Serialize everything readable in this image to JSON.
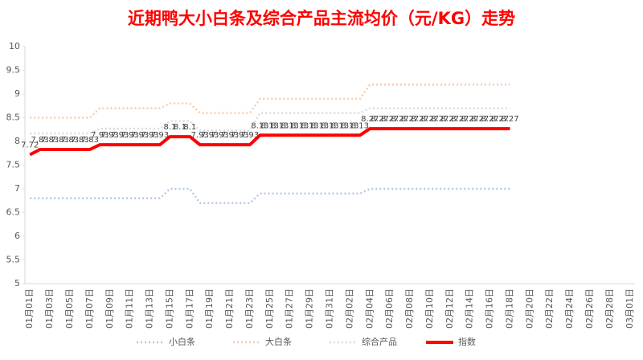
{
  "chart_data": {
    "type": "line",
    "title": "近期鸭大小白条及综合产品主流均价（元/KG）走势",
    "categories": [
      "01月01日",
      null,
      "01月03日",
      null,
      "01月05日",
      null,
      "01月07日",
      null,
      "01月09日",
      null,
      "01月11日",
      null,
      "01月13日",
      null,
      "01月15日",
      null,
      "01月17日",
      null,
      "01月19日",
      null,
      "01月21日",
      null,
      "01月23日",
      null,
      "01月25日",
      null,
      "01月27日",
      null,
      "01月29日",
      null,
      "01月31日",
      null,
      "02月02日",
      null,
      "02月04日",
      null,
      "02月06日",
      null,
      "02月08日",
      null,
      "02月10日",
      null,
      "02月12日",
      null,
      "02月14日",
      null,
      "02月16日",
      null,
      "02月18日",
      null,
      "02月20日",
      null,
      "02月22日",
      null,
      "02月24日",
      null,
      "02月26日",
      null,
      "02月28日",
      null,
      "03月01日"
    ],
    "series": [
      {
        "name": "小白条",
        "color": "#b4c7e7",
        "values": [
          6.8,
          6.8,
          6.8,
          6.8,
          6.8,
          6.8,
          6.8,
          6.8,
          6.8,
          6.8,
          6.8,
          6.8,
          6.8,
          6.8,
          7.0,
          7.0,
          7.0,
          6.7,
          6.7,
          6.7,
          6.7,
          6.7,
          6.7,
          6.9,
          6.9,
          6.9,
          6.9,
          6.9,
          6.9,
          6.9,
          6.9,
          6.9,
          6.9,
          6.9,
          7.0,
          7.0,
          7.0,
          7.0,
          7.0,
          7.0,
          7.0,
          7.0,
          7.0,
          7.0,
          7.0,
          7.0,
          7.0,
          7.0,
          7.0,
          null,
          null,
          null,
          null,
          null,
          null,
          null,
          null,
          null,
          null,
          null,
          null
        ]
      },
      {
        "name": "大白条",
        "color": "#f8cbad",
        "values": [
          8.5,
          8.5,
          8.5,
          8.5,
          8.5,
          8.5,
          8.5,
          8.7,
          8.7,
          8.7,
          8.7,
          8.7,
          8.7,
          8.7,
          8.8,
          8.8,
          8.8,
          8.6,
          8.6,
          8.6,
          8.6,
          8.6,
          8.6,
          8.9,
          8.9,
          8.9,
          8.9,
          8.9,
          8.9,
          8.9,
          8.9,
          8.9,
          8.9,
          8.9,
          9.2,
          9.2,
          9.2,
          9.2,
          9.2,
          9.2,
          9.2,
          9.2,
          9.2,
          9.2,
          9.2,
          9.2,
          9.2,
          9.2,
          9.2,
          null,
          null,
          null,
          null,
          null,
          null,
          null,
          null,
          null,
          null,
          null,
          null
        ]
      },
      {
        "name": "综合产品",
        "color": "#d6dce5",
        "values": [
          8.17,
          8.17,
          8.17,
          8.17,
          8.17,
          8.17,
          8.17,
          8.27,
          8.27,
          8.27,
          8.27,
          8.27,
          8.27,
          8.27,
          8.43,
          8.43,
          8.43,
          8.23,
          8.23,
          8.23,
          8.23,
          8.23,
          8.23,
          8.6,
          8.6,
          8.6,
          8.6,
          8.6,
          8.6,
          8.6,
          8.6,
          8.6,
          8.6,
          8.6,
          8.7,
          8.7,
          8.7,
          8.7,
          8.7,
          8.7,
          8.7,
          8.7,
          8.7,
          8.7,
          8.7,
          8.7,
          8.7,
          8.7,
          8.7,
          null,
          null,
          null,
          null,
          null,
          null,
          null,
          null,
          null,
          null,
          null,
          null
        ]
      },
      {
        "name": "指数",
        "color": "#ff0000",
        "values": [
          7.72,
          7.83,
          7.83,
          7.83,
          7.83,
          7.83,
          7.83,
          7.93,
          7.93,
          7.93,
          7.93,
          7.93,
          7.93,
          7.93,
          8.1,
          8.1,
          8.1,
          7.93,
          7.93,
          7.93,
          7.93,
          7.93,
          7.93,
          8.13,
          8.13,
          8.13,
          8.13,
          8.13,
          8.13,
          8.13,
          8.13,
          8.13,
          8.13,
          8.13,
          8.27,
          8.27,
          8.27,
          8.27,
          8.27,
          8.27,
          8.27,
          8.27,
          8.27,
          8.27,
          8.27,
          8.27,
          8.27,
          8.27,
          8.27,
          null,
          null,
          null,
          null,
          null,
          null,
          null,
          null,
          null,
          null,
          null,
          null
        ]
      }
    ],
    "ylim": [
      5,
      10
    ],
    "yticks": [
      5,
      5.5,
      6,
      6.5,
      7,
      7.5,
      8,
      8.5,
      9,
      9.5,
      10
    ],
    "grid": false,
    "legend": "bottom"
  }
}
